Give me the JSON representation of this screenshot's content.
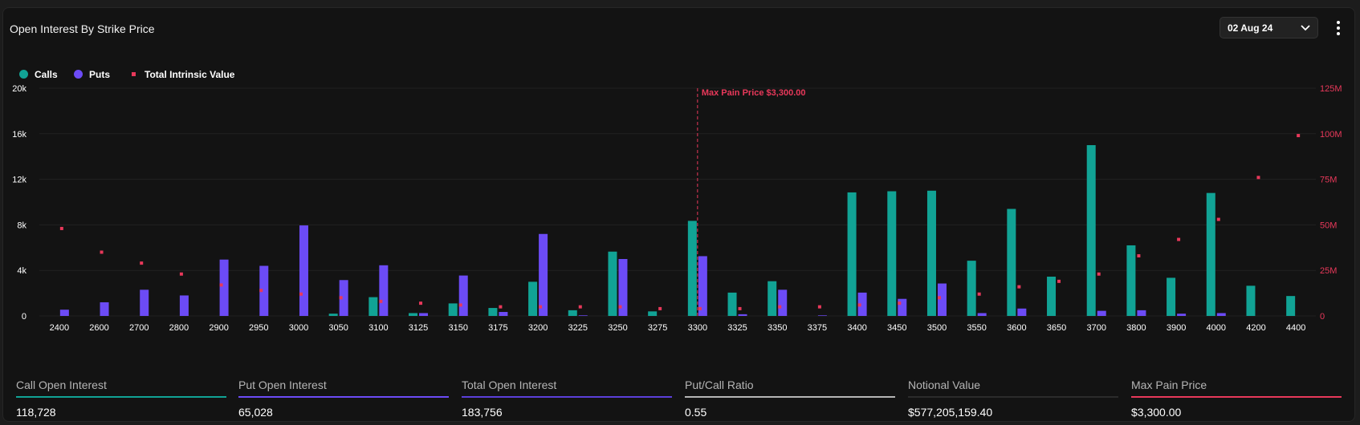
{
  "header": {
    "title": "Open Interest By Strike Price",
    "date_value": "02 Aug 24",
    "chevron_icon": "chevron-down-icon",
    "more_icon": "more-vertical-icon"
  },
  "colors": {
    "calls": "#11a395",
    "puts": "#6c4bf6",
    "intrinsic": "#e8385a",
    "grid": "#222222",
    "axis_text": "#ffffff"
  },
  "legend": [
    {
      "label": "Calls",
      "color": "#11a395",
      "shape": "circle"
    },
    {
      "label": "Puts",
      "color": "#6c4bf6",
      "shape": "circle"
    },
    {
      "label": "Total Intrinsic Value",
      "color": "#e8385a",
      "shape": "square"
    }
  ],
  "chart_data": {
    "type": "bar",
    "categories": [
      "2400",
      "2600",
      "2700",
      "2800",
      "2900",
      "2950",
      "3000",
      "3050",
      "3100",
      "3125",
      "3150",
      "3175",
      "3200",
      "3225",
      "3250",
      "3275",
      "3300",
      "3325",
      "3350",
      "3375",
      "3400",
      "3450",
      "3500",
      "3550",
      "3600",
      "3650",
      "3700",
      "3800",
      "3900",
      "4000",
      "4200",
      "4400"
    ],
    "series": [
      {
        "name": "Calls",
        "axis": "left",
        "type": "bar",
        "color": "#11a395",
        "values": [
          0,
          0,
          0,
          0,
          0,
          0,
          0,
          200,
          1650,
          250,
          1100,
          700,
          3000,
          500,
          5650,
          400,
          8350,
          2050,
          3050,
          0,
          10850,
          10950,
          11000,
          4850,
          9400,
          3450,
          15000,
          6200,
          3350,
          10800,
          2650,
          1750
        ]
      },
      {
        "name": "Puts",
        "axis": "left",
        "type": "bar",
        "color": "#6c4bf6",
        "values": [
          550,
          1200,
          2300,
          1800,
          4950,
          4400,
          7950,
          3150,
          4450,
          250,
          3550,
          350,
          7200,
          50,
          5000,
          0,
          5250,
          150,
          2300,
          50,
          2050,
          1500,
          2850,
          250,
          650,
          0,
          450,
          500,
          200,
          250,
          0,
          0
        ]
      },
      {
        "name": "Total Intrinsic Value",
        "axis": "right",
        "type": "scatter",
        "color": "#e8385a",
        "values": [
          48,
          35,
          29,
          23,
          17,
          14,
          12,
          10,
          8,
          7,
          6,
          5,
          5,
          5,
          5,
          4,
          4,
          4,
          5,
          5,
          6,
          7,
          10,
          12,
          16,
          19,
          23,
          33,
          42,
          53,
          76,
          99
        ]
      }
    ],
    "y_left": {
      "ticks": [
        "0",
        "4k",
        "8k",
        "12k",
        "16k",
        "20k"
      ],
      "tick_values": [
        0,
        4000,
        8000,
        12000,
        16000,
        20000
      ],
      "ylim": [
        0,
        20000
      ]
    },
    "y_right": {
      "ticks": [
        "0",
        "25M",
        "50M",
        "75M",
        "100M",
        "125M"
      ],
      "tick_values": [
        0,
        25,
        50,
        75,
        100,
        125
      ],
      "ylim": [
        0,
        125
      ],
      "unit": "M"
    },
    "annotation": {
      "label": "Max Pain Price $3,300.00",
      "category": "3300"
    },
    "grid": true,
    "legend_position": "top-left"
  },
  "stats": [
    {
      "label": "Call Open Interest",
      "value": "118,728",
      "color": "#11a395"
    },
    {
      "label": "Put Open Interest",
      "value": "65,028",
      "color": "#6c4bf6"
    },
    {
      "label": "Total Open Interest",
      "value": "183,756",
      "color": "#5b3fd9"
    },
    {
      "label": "Put/Call Ratio",
      "value": "0.55",
      "color": "#b5b5b5"
    },
    {
      "label": "Notional Value",
      "value": "$577,205,159.40",
      "color": "#2b2b2b"
    },
    {
      "label": "Max Pain Price",
      "value": "$3,300.00",
      "color": "#e8385a"
    }
  ]
}
